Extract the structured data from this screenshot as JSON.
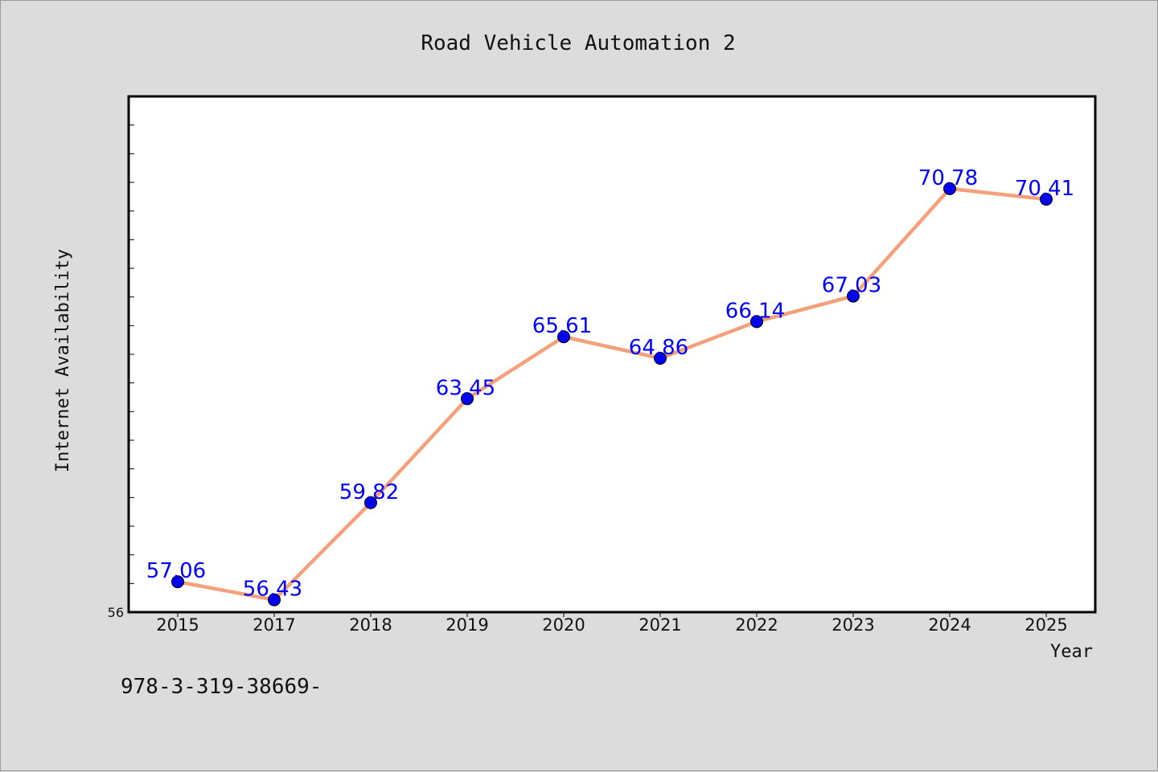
{
  "chart_data": {
    "type": "line",
    "title": "Road Vehicle Automation 2",
    "xlabel": "Year",
    "ylabel": "Internet Availability",
    "categories": [
      "2015",
      "2017",
      "2018",
      "2019",
      "2020",
      "2021",
      "2022",
      "2023",
      "2024",
      "2025"
    ],
    "values": [
      57.06,
      56.43,
      59.82,
      63.45,
      65.61,
      64.86,
      66.14,
      67.03,
      70.78,
      70.41
    ],
    "data_labels": [
      "57.06",
      "56.43",
      "59.82",
      "63.45",
      "65.61",
      "64.86",
      "66.14",
      "67.03",
      "70.78",
      "70.41"
    ],
    "ylim": [
      56,
      74
    ],
    "y_tick_labels": [
      "56"
    ],
    "y_minor_step": 1,
    "grid": false,
    "legend": "none",
    "line_color": "#f4a07a",
    "marker_color": "#0000ee",
    "label_color": "#0000ff"
  },
  "footnote": "978-3-319-38669-"
}
